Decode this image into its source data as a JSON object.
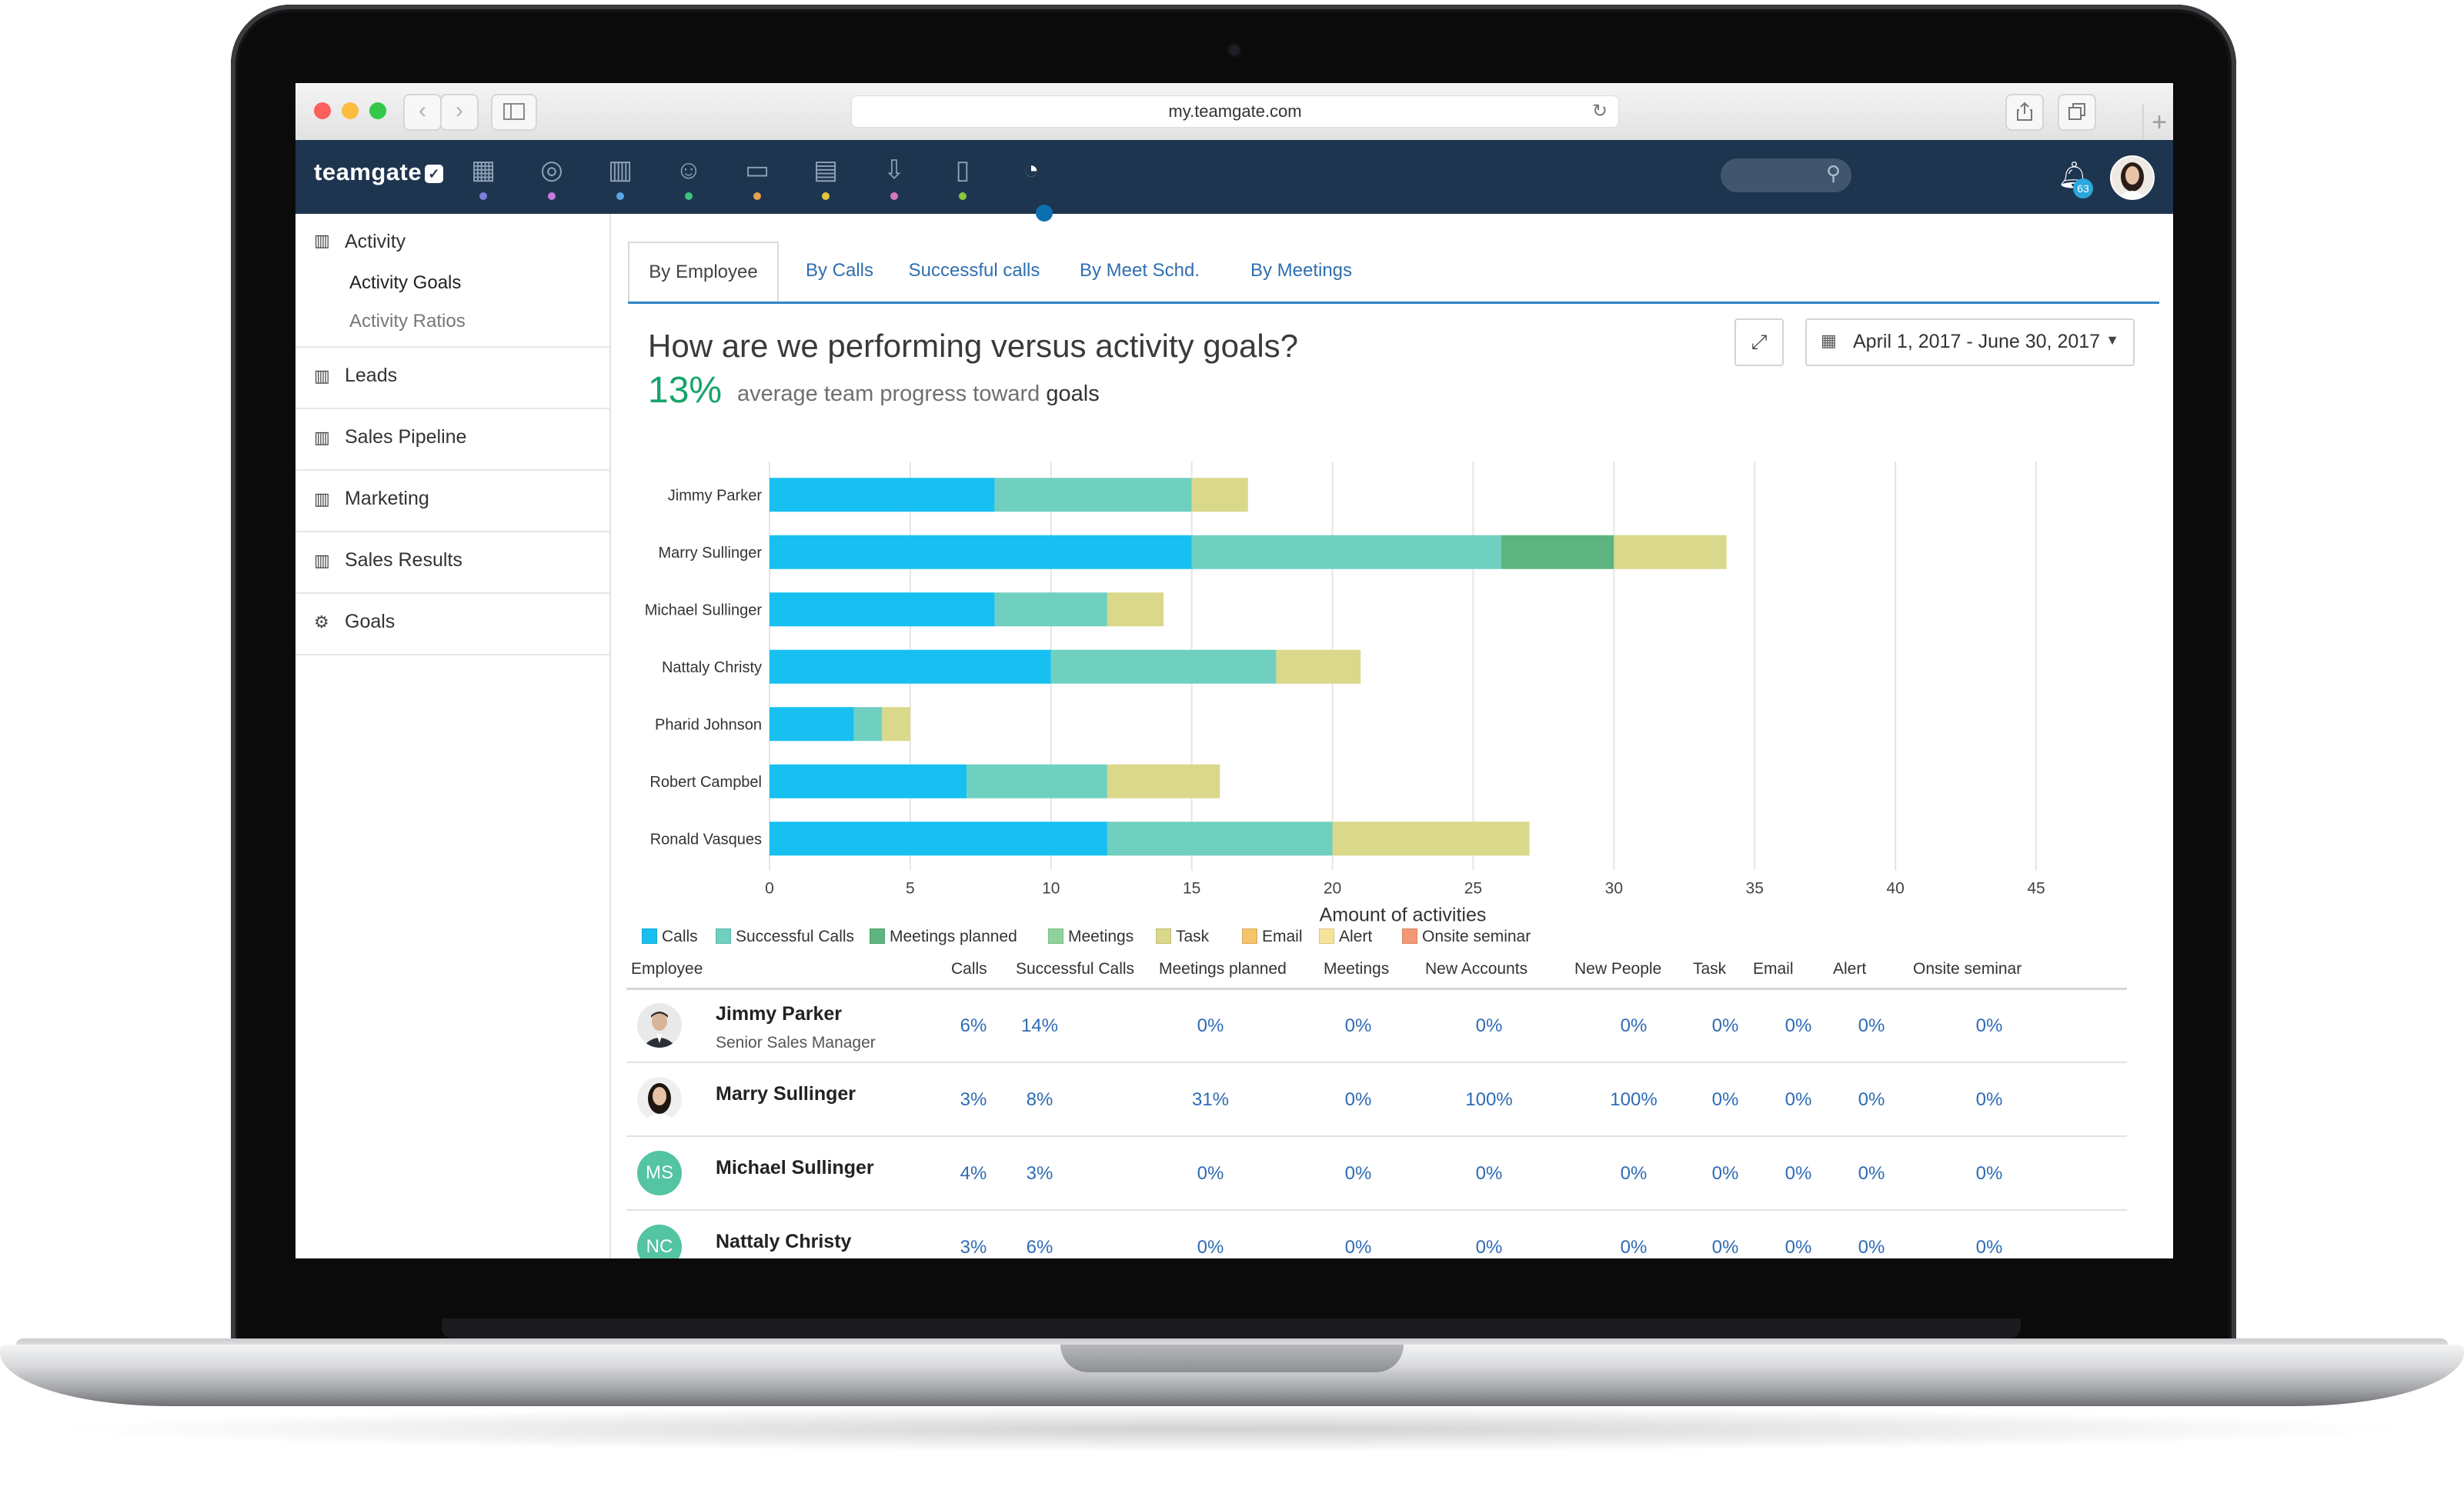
{
  "browser": {
    "url": "my.teamgate.com"
  },
  "app": {
    "logo_text": "teamgate",
    "notifications_count": "63",
    "nav_icons": [
      {
        "icon": "dashboard-icon",
        "color": "#7b7fe0"
      },
      {
        "icon": "target-icon",
        "color": "#c87adf"
      },
      {
        "icon": "building-icon",
        "color": "#59a6e4"
      },
      {
        "icon": "contacts-icon",
        "color": "#3fc17a"
      },
      {
        "icon": "briefcase-icon",
        "color": "#e9a050"
      },
      {
        "icon": "calendar-icon",
        "color": "#e2c53b"
      },
      {
        "icon": "inbox-icon",
        "color": "#d777c0"
      },
      {
        "icon": "clipboard-icon",
        "color": "#8bc63f"
      },
      {
        "icon": "reports-pie-icon",
        "color": "#ffffff"
      }
    ]
  },
  "sidebar": {
    "sections": [
      {
        "label": "Activity",
        "icon": "bar-chart-icon"
      },
      {
        "label": "Leads",
        "icon": "bar-chart-icon"
      },
      {
        "label": "Sales Pipeline",
        "icon": "bar-chart-icon"
      },
      {
        "label": "Marketing",
        "icon": "bar-chart-icon"
      },
      {
        "label": "Sales Results",
        "icon": "bar-chart-icon"
      },
      {
        "label": "Goals",
        "icon": "gears-icon"
      }
    ],
    "activity_sub": [
      "Activity Goals",
      "Activity Ratios"
    ]
  },
  "tabs": [
    "By Employee",
    "By Calls",
    "Successful calls",
    "By Meet Schd.",
    "By Meetings"
  ],
  "report": {
    "heading": "How are we performing versus activity goals?",
    "avg_pct": "13%",
    "avg_text": "average team progress toward",
    "avg_text_bold": "goals",
    "date_range": "April 1, 2017 - June 30, 2017"
  },
  "chart_data": {
    "type": "bar",
    "orientation": "horizontal",
    "stacked": true,
    "categories": [
      "Jimmy Parker",
      "Marry Sullinger",
      "Michael Sullinger",
      "Nattaly Christy",
      "Pharid Johnson",
      "Robert Campbel",
      "Ronald Vasques"
    ],
    "series": [
      {
        "name": "Calls",
        "color": "#17c0f0",
        "values": [
          8,
          15,
          8,
          10,
          3,
          7,
          12
        ]
      },
      {
        "name": "Successful Calls",
        "color": "#6fd0c0",
        "values": [
          7,
          11,
          4,
          8,
          1,
          5,
          8
        ]
      },
      {
        "name": "Meetings planned",
        "color": "#5db47f",
        "values": [
          0,
          4,
          0,
          0,
          0,
          0,
          0
        ]
      },
      {
        "name": "Meetings",
        "color": "#8ed39a",
        "values": [
          0,
          0,
          0,
          0,
          0,
          0,
          0
        ]
      },
      {
        "name": "Task",
        "color": "#dad88a",
        "values": [
          2,
          4,
          2,
          3,
          1,
          4,
          7
        ]
      },
      {
        "name": "Email",
        "color": "#f4c36a",
        "values": [
          0,
          0,
          0,
          0,
          0,
          0,
          0
        ]
      },
      {
        "name": "Alert",
        "color": "#f6e39a",
        "values": [
          0,
          0,
          0,
          0,
          0,
          0,
          0
        ]
      },
      {
        "name": "Onsite seminar",
        "color": "#f29873",
        "values": [
          0,
          0,
          0,
          0,
          0,
          0,
          0
        ]
      }
    ],
    "xlabel": "Amount of activities",
    "xlim": [
      0,
      45
    ],
    "xticks": [
      0,
      5,
      10,
      15,
      20,
      25,
      30,
      35,
      40,
      45
    ],
    "grid": true,
    "legend_position": "bottom-left"
  },
  "table": {
    "headers": [
      "Employee",
      "Calls",
      "Successful Calls",
      "Meetings planned",
      "Meetings",
      "New Accounts",
      "New People",
      "Task",
      "Email",
      "Alert",
      "Onsite seminar"
    ],
    "rows": [
      {
        "name": "Jimmy Parker",
        "title": "Senior Sales Manager",
        "avatar": "photo",
        "values": [
          "6%",
          "14%",
          "0%",
          "0%",
          "0%",
          "0%",
          "0%",
          "0%",
          "0%",
          "0%"
        ]
      },
      {
        "name": "Marry Sullinger",
        "title": "",
        "avatar": "photo",
        "values": [
          "3%",
          "8%",
          "31%",
          "0%",
          "100%",
          "100%",
          "0%",
          "0%",
          "0%",
          "0%"
        ]
      },
      {
        "name": "Michael Sullinger",
        "title": "",
        "avatar": "MS",
        "values": [
          "4%",
          "3%",
          "0%",
          "0%",
          "0%",
          "0%",
          "0%",
          "0%",
          "0%",
          "0%"
        ]
      },
      {
        "name": "Nattaly Christy",
        "title": "",
        "avatar": "NC",
        "values": [
          "3%",
          "6%",
          "0%",
          "0%",
          "0%",
          "0%",
          "0%",
          "0%",
          "0%",
          "0%"
        ]
      }
    ]
  }
}
